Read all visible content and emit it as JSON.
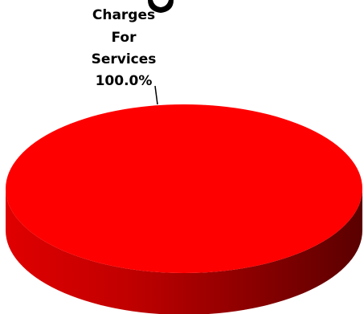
{
  "chart_data": {
    "type": "pie",
    "style": "3d",
    "title": "",
    "slices": [
      {
        "label_lines": [
          "Charges",
          "For",
          "Services"
        ],
        "value": 100.0,
        "percent_label": "100.0%",
        "color": "#ff0000",
        "side_color_light": "#e00000",
        "side_color_dark": "#5a0000"
      }
    ],
    "legend": "none"
  }
}
